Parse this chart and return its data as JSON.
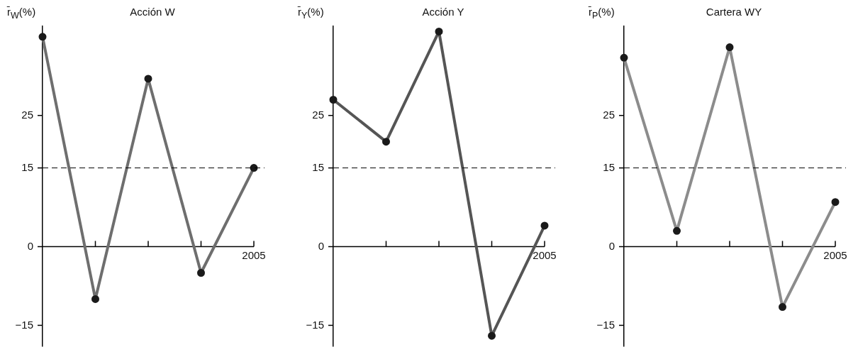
{
  "chart_data": [
    {
      "type": "line",
      "title": "Acción W",
      "ylabel": "r̄$_{W}$(%)",
      "categories": [
        null,
        null,
        null,
        null,
        "2005"
      ],
      "series": [
        {
          "color": "#6e6e6e",
          "values": [
            40,
            -10,
            32,
            -5,
            15
          ]
        }
      ],
      "ylim": [
        -19,
        42
      ],
      "yticks": [
        -15,
        0,
        15,
        25
      ],
      "grid": false,
      "legend": false,
      "marker": "circle",
      "line_style": "solid",
      "ref_lines": [
        {
          "axis": "y",
          "value": 15,
          "color": "#000000",
          "line_style": "dashed"
        }
      ]
    },
    {
      "type": "line",
      "title": "Acción Y",
      "ylabel": "r̄$_{Y}$(%)",
      "categories": [
        null,
        null,
        null,
        null,
        "2005"
      ],
      "series": [
        {
          "color": "#555555",
          "values": [
            28,
            20,
            41,
            -17,
            4
          ]
        }
      ],
      "ylim": [
        -19,
        42
      ],
      "yticks": [
        -15,
        0,
        15,
        25
      ],
      "grid": false,
      "legend": false,
      "marker": "circle",
      "line_style": "solid",
      "ref_lines": [
        {
          "axis": "y",
          "value": 15,
          "color": "#000000",
          "line_style": "dashed"
        }
      ]
    },
    {
      "type": "line",
      "title": "Cartera WY",
      "ylabel": "r̄$_{P}$(%)",
      "categories": [
        null,
        null,
        null,
        null,
        "2005"
      ],
      "series": [
        {
          "color": "#8c8c8c",
          "values": [
            36,
            3,
            38,
            -11.5,
            8.5
          ]
        }
      ],
      "ylim": [
        -19,
        42
      ],
      "yticks": [
        -15,
        0,
        15,
        25
      ],
      "grid": false,
      "legend": false,
      "marker": "circle",
      "line_style": "solid",
      "ref_lines": [
        {
          "axis": "y",
          "value": 15,
          "color": "#000000",
          "line_style": "dashed"
        }
      ]
    }
  ]
}
